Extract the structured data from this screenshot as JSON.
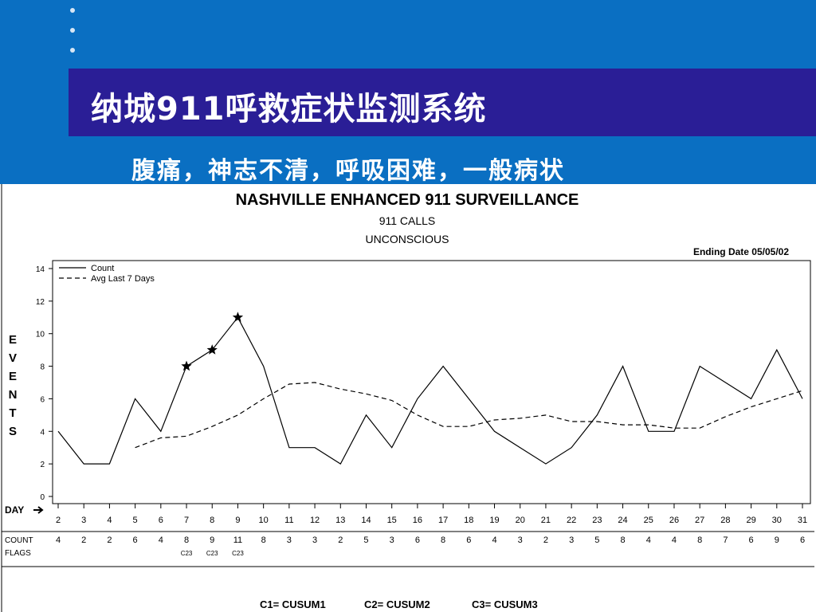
{
  "slide": {
    "title": "纳城911呼救症状监测系统",
    "subtitle": "腹痛，神志不清，呼吸困难，一般病状"
  },
  "chart_data": {
    "type": "line",
    "title": "NASHVILLE ENHANCED 911 SURVEILLANCE",
    "subtitle1": "911 CALLS",
    "subtitle2": "UNCONSCIOUS",
    "ending_date": "Ending Date 05/05/02",
    "ylabel": "EVENTS",
    "xlabel": "DAY",
    "x": [
      2,
      3,
      4,
      5,
      6,
      7,
      8,
      9,
      10,
      11,
      12,
      13,
      14,
      15,
      16,
      17,
      18,
      19,
      20,
      21,
      22,
      23,
      24,
      25,
      26,
      27,
      28,
      29,
      30,
      31
    ],
    "ylim": [
      0,
      14
    ],
    "yticks": [
      0,
      2,
      4,
      6,
      8,
      10,
      12,
      14
    ],
    "series": [
      {
        "name": "Count",
        "style": "solid",
        "values": [
          4,
          2,
          2,
          6,
          4,
          8,
          9,
          11,
          8,
          3,
          3,
          2,
          5,
          3,
          6,
          8,
          6,
          4,
          3,
          2,
          3,
          5,
          8,
          4,
          4,
          8,
          7,
          6,
          9,
          6
        ]
      },
      {
        "name": "Avg Last 7 Days",
        "style": "dashed",
        "values": [
          null,
          null,
          null,
          3.0,
          3.6,
          3.7,
          4.3,
          5.0,
          6.0,
          6.9,
          7.0,
          6.6,
          6.3,
          5.9,
          5.0,
          4.3,
          4.3,
          4.7,
          4.8,
          5.0,
          4.6,
          4.6,
          4.4,
          4.4,
          4.2,
          4.2,
          4.9,
          5.5,
          6.0,
          6.5
        ]
      }
    ],
    "flagged_days": [
      7,
      8,
      9
    ],
    "table": {
      "count_label": "COUNT",
      "flags_label": "FLAGS",
      "counts": [
        4,
        2,
        2,
        6,
        4,
        8,
        9,
        11,
        8,
        3,
        3,
        2,
        5,
        3,
        6,
        8,
        6,
        4,
        3,
        2,
        3,
        5,
        8,
        4,
        4,
        8,
        7,
        6,
        9,
        6
      ],
      "flags": [
        "",
        "",
        "",
        "",
        "",
        "C23",
        "C23",
        "C23",
        "",
        "",
        "",
        "",
        "",
        "",
        "",
        "",
        "",
        "",
        "",
        "",
        "",
        "",
        "",
        "",
        "",
        "",
        "",
        "",
        "",
        ""
      ]
    },
    "footnote": [
      "C1= CUSUM1",
      "C2= CUSUM2",
      "C3= CUSUM3"
    ],
    "grid": false,
    "legend": "top-left"
  }
}
